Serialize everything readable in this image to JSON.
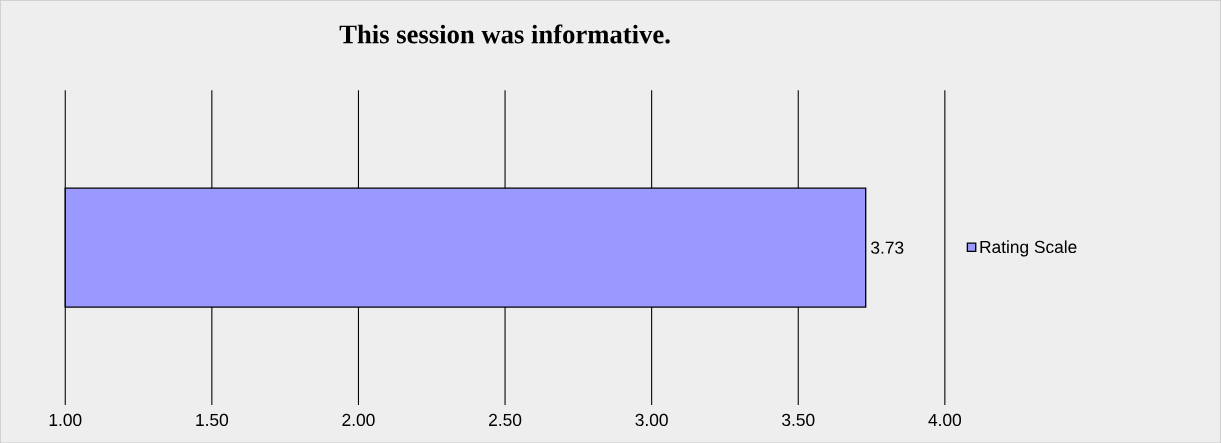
{
  "chart_data": {
    "type": "bar",
    "orientation": "horizontal",
    "title": "This session was informative.",
    "categories": [
      null
    ],
    "series": [
      {
        "name": "Rating Scale",
        "color": "#9999ff",
        "values": [
          3.73
        ]
      }
    ],
    "xlim": [
      1,
      4
    ],
    "xticks": [
      {
        "value": 1,
        "label": "1.00"
      },
      {
        "value": 1.5,
        "label": "1.50"
      },
      {
        "value": 2,
        "label": "2.00"
      },
      {
        "value": 2.5,
        "label": "2.50"
      },
      {
        "value": 3,
        "label": "3.00"
      },
      {
        "value": 3.5,
        "label": "3.50"
      },
      {
        "value": 4,
        "label": "4.00"
      }
    ],
    "grid": "x",
    "legend": "right",
    "data_labels": true
  }
}
